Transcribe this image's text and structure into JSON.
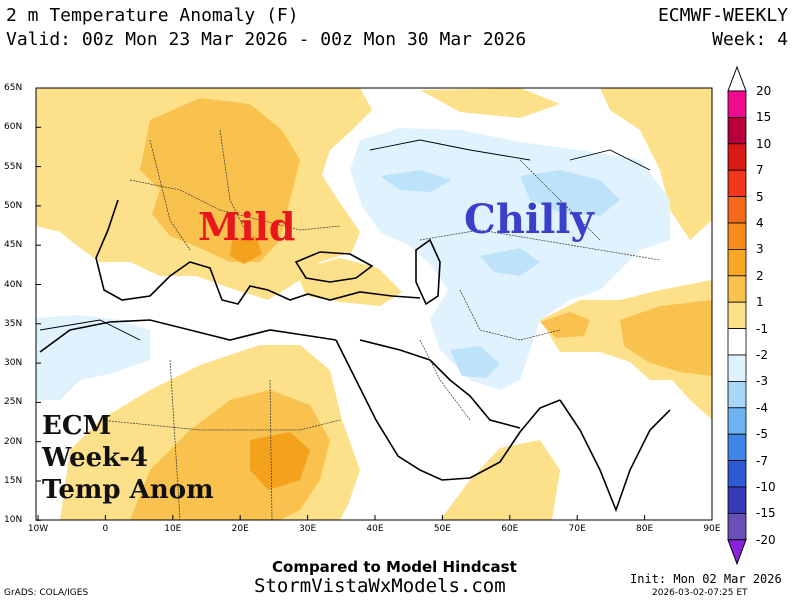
{
  "header": {
    "title": "2 m Temperature Anomaly (F)",
    "valid": "Valid: 00z Mon 23 Mar 2026 - 00z Mon 30 Mar 2026",
    "model": "ECMWF-WEEKLY",
    "week": "Week: 4"
  },
  "map": {
    "latitude_labels": [
      "65N",
      "60N",
      "55N",
      "50N",
      "45N",
      "40N",
      "35N",
      "30N",
      "25N",
      "20N",
      "15N",
      "10N"
    ],
    "longitude_labels": [
      "10W",
      "0",
      "10E",
      "20E",
      "30E",
      "40E",
      "50E",
      "60E",
      "70E",
      "80E",
      "90E"
    ],
    "annotations": {
      "mild": "Mild",
      "chilly": "Chilly",
      "ecm_lines": [
        "ECM",
        "Week-4",
        "Temp Anom"
      ]
    },
    "colors": {
      "mild": "#e8171b",
      "chilly": "#3b40c9",
      "anom_1_2": "#fde08a",
      "anom_2_3": "#f9c24e",
      "anom_3_4": "#f4a21d",
      "anom_neg_1_2": "#dff2fd",
      "anom_neg_2_3": "#bde3fb"
    }
  },
  "colorbar": {
    "labels": [
      "20",
      "15",
      "10",
      "7",
      "5",
      "4",
      "3",
      "2",
      "1",
      "-1",
      "-2",
      "-3",
      "-4",
      "-5",
      "-7",
      "-10",
      "-15",
      "-20"
    ],
    "colors": [
      "#f00a8c",
      "#b7003a",
      "#da1a17",
      "#f2361b",
      "#f46a1c",
      "#f78c1d",
      "#f7a823",
      "#f9c24e",
      "#fde08a",
      "#ffffff",
      "#dff2fd",
      "#a8d7f8",
      "#6eb3ef",
      "#3f86e8",
      "#2e5ad6",
      "#3a3ab8",
      "#6a4fb6",
      "#8a22dd"
    ]
  },
  "footer": {
    "compared": "Compared to Model Hindcast",
    "site": "StormVistaWxModels.com",
    "grads": "GrADS: COLA/IGES",
    "init": "Init: Mon 02 Mar 2026",
    "timestamp": "2026-03-02-07:25 ET"
  }
}
